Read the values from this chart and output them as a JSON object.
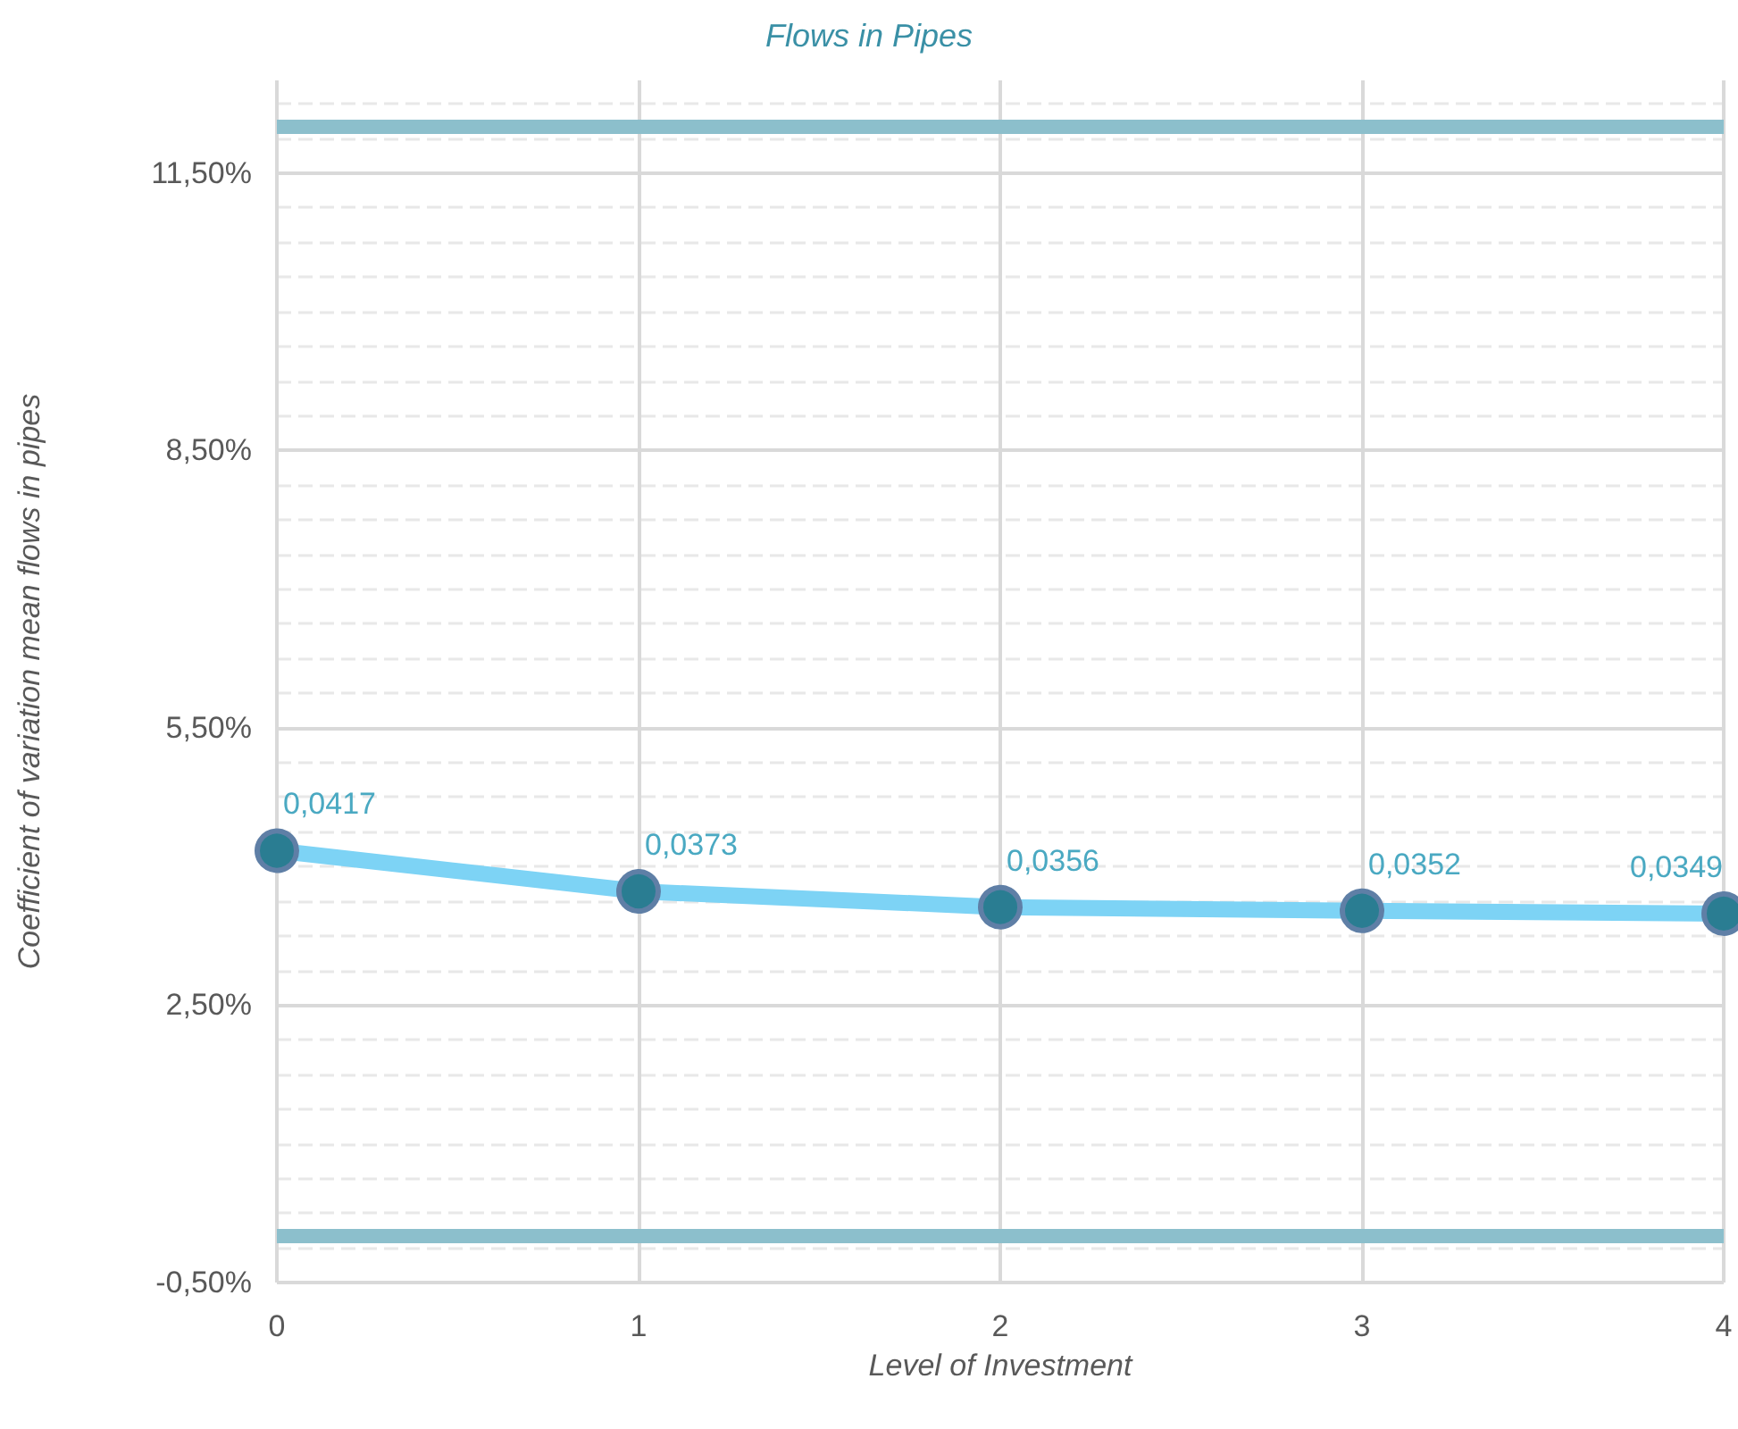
{
  "chart_data": {
    "type": "line",
    "title": "Flows in Pipes",
    "xlabel": "Level of Investment",
    "ylabel": "Coefficient of variation mean flows in pipes",
    "x": [
      0,
      1,
      2,
      3,
      4
    ],
    "series": [
      {
        "color": "#7dd3f5",
        "values": [
          0.0417,
          0.0373,
          0.0356,
          0.0352,
          0.0349
        ],
        "value_labels": [
          "0,0417",
          "0,0373",
          "0,0356",
          "0,0352",
          "0,0349"
        ]
      }
    ],
    "xlim": [
      0,
      4
    ],
    "xticks": [
      0,
      1,
      2,
      3,
      4
    ],
    "ylim": [
      -0.005,
      0.125
    ],
    "yticks": [
      {
        "value": -0.005,
        "label": "-0,50%"
      },
      {
        "value": 0.025,
        "label": "2,50%"
      },
      {
        "value": 0.055,
        "label": "5,50%"
      },
      {
        "value": 0.085,
        "label": "8,50%"
      },
      {
        "value": 0.115,
        "label": "11,50%"
      },
      {
        "value": -0.00125,
        "label": null
      },
      {
        "value": 0.0025,
        "label": null
      },
      {
        "value": 0.00625,
        "label": null
      },
      {
        "value": 0.01,
        "label": null
      },
      {
        "value": 0.01375,
        "label": null
      },
      {
        "value": 0.0175,
        "label": null
      },
      {
        "value": 0.02125,
        "label": null
      },
      {
        "value": 0.02875,
        "label": null
      },
      {
        "value": 0.0325,
        "label": null
      },
      {
        "value": 0.03625,
        "label": null
      },
      {
        "value": 0.04,
        "label": null
      },
      {
        "value": 0.04375,
        "label": null
      },
      {
        "value": 0.0475,
        "label": null
      },
      {
        "value": 0.05125,
        "label": null
      },
      {
        "value": 0.05875,
        "label": null
      },
      {
        "value": 0.0625,
        "label": null
      },
      {
        "value": 0.06625,
        "label": null
      },
      {
        "value": 0.07,
        "label": null
      },
      {
        "value": 0.07375,
        "label": null
      },
      {
        "value": 0.0775,
        "label": null
      },
      {
        "value": 0.08125,
        "label": null
      },
      {
        "value": 0.08875,
        "label": null
      },
      {
        "value": 0.0925,
        "label": null
      },
      {
        "value": 0.09625,
        "label": null
      },
      {
        "value": 0.1,
        "label": null
      },
      {
        "value": 0.10375,
        "label": null
      },
      {
        "value": 0.1075,
        "label": null
      },
      {
        "value": 0.11125,
        "label": null
      },
      {
        "value": 0.11875,
        "label": null
      },
      {
        "value": 0.1225,
        "label": null
      }
    ],
    "ref_lines": [
      {
        "axis": "y",
        "value": 0.12,
        "color": "#8cbfcc"
      },
      {
        "axis": "y",
        "value": 0,
        "color": "#8cbfcc"
      }
    ],
    "grid": true,
    "marker": "circle",
    "line_style": "solid"
  }
}
